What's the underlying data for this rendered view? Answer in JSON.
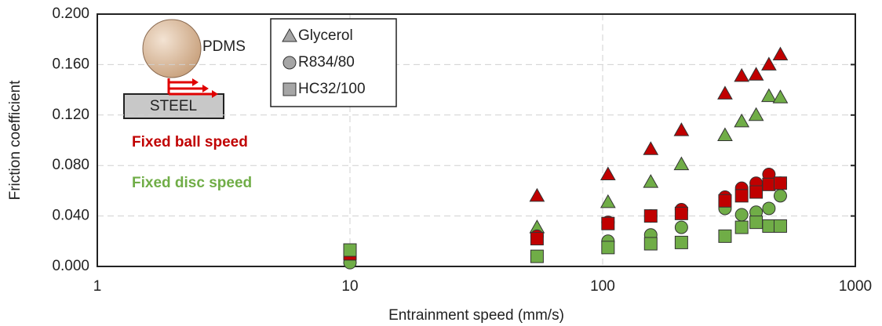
{
  "chart_data": {
    "type": "scatter",
    "xlabel": "Entrainment speed (mm/s)",
    "ylabel": "Friction coefficient",
    "xscale": "log",
    "xlim": [
      1,
      1000
    ],
    "xticks": [
      1,
      10,
      100,
      1000
    ],
    "ylim": [
      0,
      0.2
    ],
    "yticks": [
      {
        "value": 0,
        "label": "0.000"
      },
      {
        "value": 0.04,
        "label": "0.040"
      },
      {
        "value": 0.08,
        "label": "0.080"
      },
      {
        "value": 0.12,
        "label": "0.120"
      },
      {
        "value": 0.16,
        "label": "0.160"
      },
      {
        "value": 0.2,
        "label": "0.200"
      }
    ],
    "grid": true,
    "legend_color": "#a6a6a6",
    "annotations": [
      {
        "text": "Fixed ball speed",
        "color": "#c00000"
      },
      {
        "text": "Fixed disc speed",
        "color": "#70ad47"
      }
    ],
    "series": [
      {
        "name": "Glycerol",
        "marker": "triangle",
        "sets": [
          {
            "x": [
              55,
              105,
              155,
              205,
              305,
              355,
              405,
              455,
              505
            ],
            "values": [
              0.056,
              0.073,
              0.093,
              0.108,
              0.137,
              0.151,
              0.152,
              0.16,
              0.168
            ]
          },
          {
            "x": [
              55,
              105,
              155,
              205,
              305,
              355,
              405,
              455,
              505
            ],
            "values": [
              0.031,
              0.051,
              0.067,
              0.081,
              0.104,
              0.115,
              0.12,
              0.135,
              0.134
            ]
          }
        ]
      },
      {
        "name": "R834/80",
        "marker": "circle",
        "sets": [
          {
            "x": [
              55,
              105,
              155,
              205,
              305,
              355,
              405,
              455,
              505
            ],
            "values": [
              0.024,
              0.035,
              0.04,
              0.045,
              0.055,
              0.062,
              0.066,
              0.073,
              0.066
            ]
          },
          {
            "x": [
              10,
              105,
              155,
              205,
              305,
              355,
              405,
              455,
              505
            ],
            "values": [
              0.003,
              0.02,
              0.025,
              0.031,
              0.046,
              0.041,
              0.043,
              0.046,
              0.056
            ]
          }
        ]
      },
      {
        "name": "HC32/100",
        "marker": "square",
        "sets": [
          {
            "x": [
              10,
              55,
              105,
              155,
              205,
              305,
              355,
              405,
              455,
              505
            ],
            "values": [
              0.01,
              0.022,
              0.034,
              0.04,
              0.042,
              0.052,
              0.056,
              0.059,
              0.065,
              0.066
            ]
          },
          {
            "x": [
              10,
              55,
              105,
              155,
              205,
              305,
              355,
              405,
              455,
              505
            ],
            "values": [
              0.013,
              0.008,
              0.015,
              0.018,
              0.019,
              0.024,
              0.031,
              0.035,
              0.032,
              0.032
            ]
          }
        ]
      }
    ]
  },
  "inset": {
    "ball_label": "PDMS",
    "plate_label": "STEEL"
  }
}
